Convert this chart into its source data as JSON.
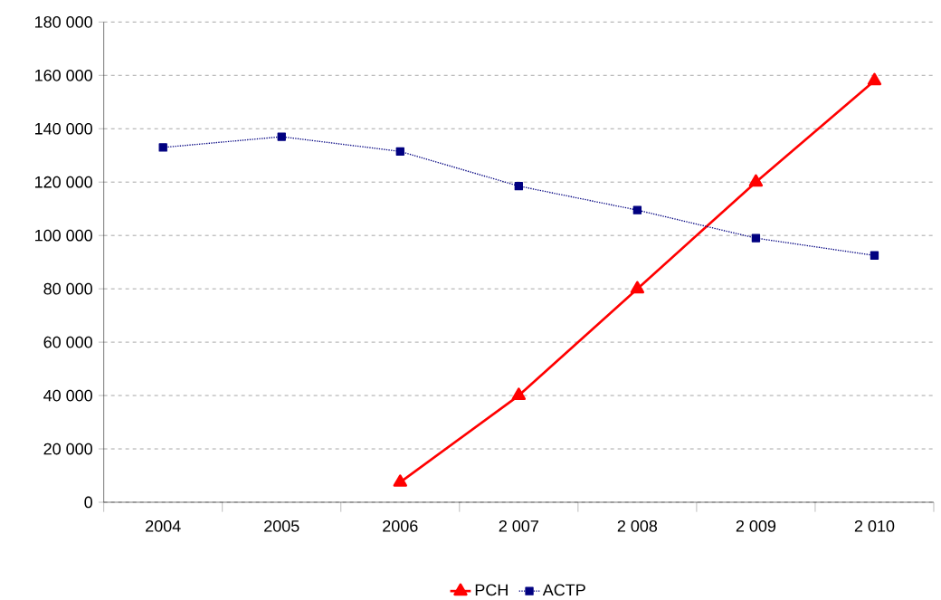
{
  "chart_data": {
    "type": "line",
    "categories": [
      "2004",
      "2005",
      "2006",
      "2 007",
      "2 008",
      "2 009",
      "2 010"
    ],
    "series": [
      {
        "name": "PCH",
        "color": "#ff0000",
        "marker": "triangle",
        "line_style": "solid",
        "values": [
          null,
          null,
          7500,
          40000,
          80000,
          120000,
          158000
        ]
      },
      {
        "name": "ACTP",
        "color": "#000080",
        "marker": "square",
        "line_style": "dotted",
        "values": [
          133000,
          137000,
          131500,
          118500,
          109500,
          99000,
          92500
        ]
      }
    ],
    "ylim": [
      0,
      180000
    ],
    "yticks": [
      0,
      {
        "value": 20000,
        "label": "20 000"
      },
      {
        "value": 40000,
        "label": "40 000"
      },
      {
        "value": 60000,
        "label": "60 000"
      },
      {
        "value": 80000,
        "label": "80 000"
      },
      {
        "value": 100000,
        "label": "100 000"
      },
      {
        "value": 120000,
        "label": "120 000"
      },
      {
        "value": 140000,
        "label": "140 000"
      },
      {
        "value": 160000,
        "label": "160 000"
      },
      {
        "value": 180000,
        "label": "180 000"
      }
    ],
    "grid": "y",
    "legend": "bottom"
  }
}
